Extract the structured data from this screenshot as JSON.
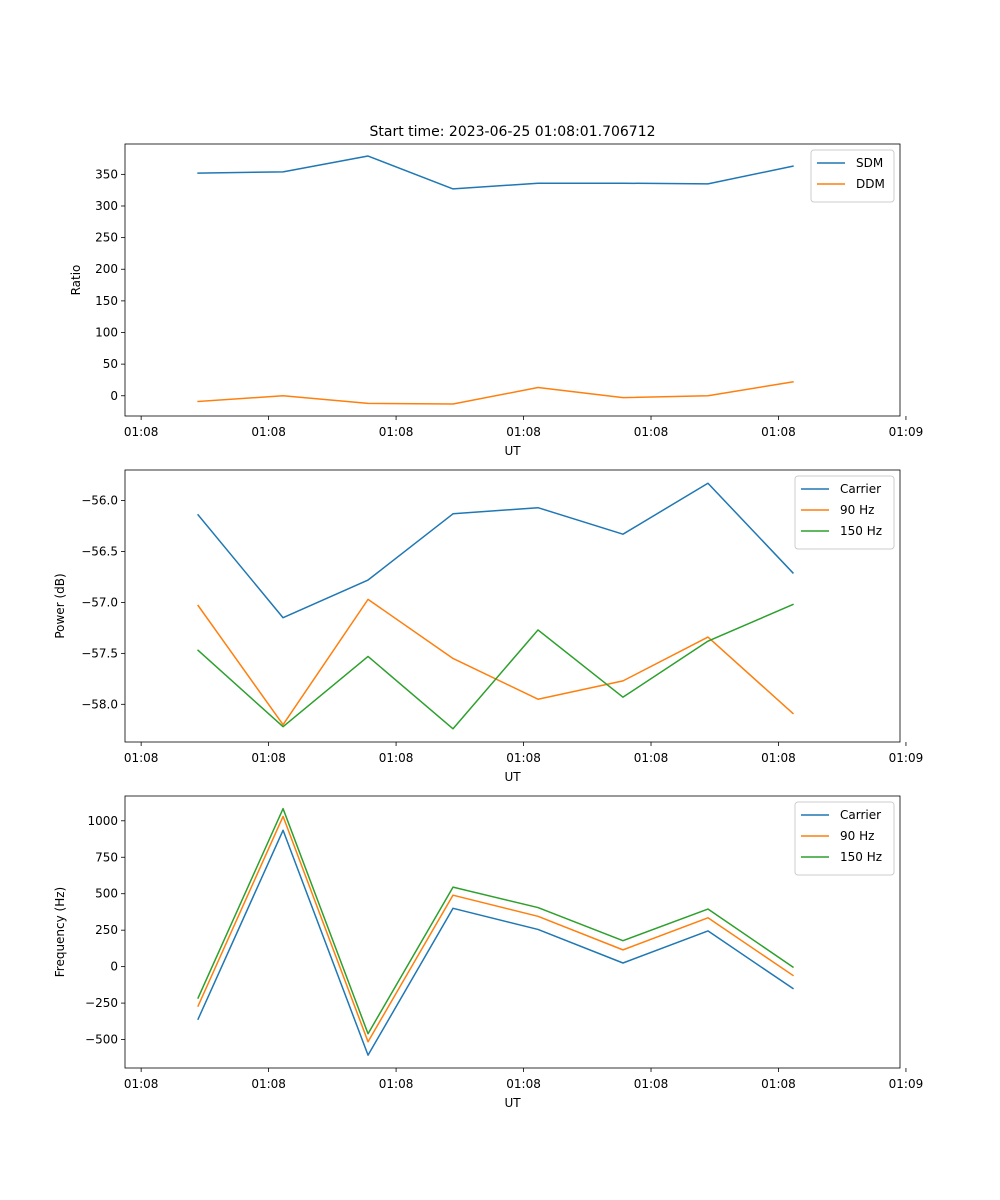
{
  "title": "Start time: 2023-06-25 01:08:01.706712",
  "colors": {
    "blue": "#1f77b4",
    "orange": "#ff7f0e",
    "green": "#2ca02c"
  },
  "chart_data": [
    {
      "type": "line",
      "title": "Start time: 2023-06-25 01:08:01.706712",
      "xlabel": "UT",
      "ylabel": "Ratio",
      "x": [
        1,
        2,
        3,
        4,
        5,
        6,
        7,
        8
      ],
      "xlim": [
        0.14,
        9.26
      ],
      "xticks": [
        0.33,
        1.83,
        3.33,
        4.83,
        6.33,
        7.83,
        9.33
      ],
      "xticklabels": [
        "01:08",
        "01:08",
        "01:08",
        "01:08",
        "01:08",
        "01:08",
        "01:09"
      ],
      "ylim": [
        -32,
        398
      ],
      "yticks": [
        0,
        50,
        100,
        150,
        200,
        250,
        300,
        350
      ],
      "yticklabels": [
        "0",
        "50",
        "100",
        "150",
        "200",
        "250",
        "300",
        "350"
      ],
      "grid": false,
      "legend": "top-right",
      "series": [
        {
          "name": "SDM",
          "color": "#1f77b4",
          "values": [
            352,
            354,
            379,
            327,
            336,
            336,
            335,
            363
          ]
        },
        {
          "name": "DDM",
          "color": "#ff7f0e",
          "values": [
            -9,
            0,
            -12,
            -13,
            13,
            -3,
            0,
            22
          ]
        }
      ]
    },
    {
      "type": "line",
      "title": "",
      "xlabel": "UT",
      "ylabel": "Power (dB)",
      "x": [
        1,
        2,
        3,
        4,
        5,
        6,
        7,
        8
      ],
      "xlim": [
        0.14,
        9.26
      ],
      "xticks": [
        0.33,
        1.83,
        3.33,
        4.83,
        6.33,
        7.83,
        9.33
      ],
      "xticklabels": [
        "01:08",
        "01:08",
        "01:08",
        "01:08",
        "01:08",
        "01:08",
        "01:09"
      ],
      "ylim": [
        -58.37,
        -55.7
      ],
      "yticks": [
        -58.0,
        -57.5,
        -57.0,
        -56.5,
        -56.0
      ],
      "yticklabels": [
        "−58.0",
        "−57.5",
        "−57.0",
        "−56.5",
        "−56.0"
      ],
      "grid": false,
      "legend": "top-right",
      "series": [
        {
          "name": "Carrier",
          "color": "#1f77b4",
          "values": [
            -56.14,
            -57.15,
            -56.78,
            -56.13,
            -56.07,
            -56.33,
            -55.83,
            -56.71
          ]
        },
        {
          "name": "90 Hz",
          "color": "#ff7f0e",
          "values": [
            -57.03,
            -58.2,
            -56.97,
            -57.55,
            -57.95,
            -57.77,
            -57.34,
            -58.09
          ]
        },
        {
          "name": "150 Hz",
          "color": "#2ca02c",
          "values": [
            -57.47,
            -58.22,
            -57.53,
            -58.24,
            -57.27,
            -57.93,
            -57.38,
            -57.02
          ]
        }
      ]
    },
    {
      "type": "line",
      "title": "",
      "xlabel": "UT",
      "ylabel": "Frequency (Hz)",
      "x": [
        1,
        2,
        3,
        4,
        5,
        6,
        7,
        8
      ],
      "xlim": [
        0.14,
        9.26
      ],
      "xticks": [
        0.33,
        1.83,
        3.33,
        4.83,
        6.33,
        7.83,
        9.33
      ],
      "xticklabels": [
        "01:08",
        "01:08",
        "01:08",
        "01:08",
        "01:08",
        "01:08",
        "01:09"
      ],
      "ylim": [
        -695,
        1170
      ],
      "yticks": [
        -500,
        -250,
        0,
        250,
        500,
        750,
        1000
      ],
      "yticklabels": [
        "−500",
        "−250",
        "0",
        "250",
        "500",
        "750",
        "1000"
      ],
      "grid": false,
      "legend": "top-right",
      "series": [
        {
          "name": "Carrier",
          "color": "#1f77b4",
          "values": [
            -360,
            935,
            -607,
            400,
            255,
            25,
            245,
            -150
          ]
        },
        {
          "name": "90 Hz",
          "color": "#ff7f0e",
          "values": [
            -270,
            1030,
            -515,
            490,
            345,
            115,
            335,
            -60
          ]
        },
        {
          "name": "150 Hz",
          "color": "#2ca02c",
          "values": [
            -215,
            1083,
            -460,
            545,
            405,
            178,
            395,
            -3
          ]
        }
      ]
    }
  ]
}
